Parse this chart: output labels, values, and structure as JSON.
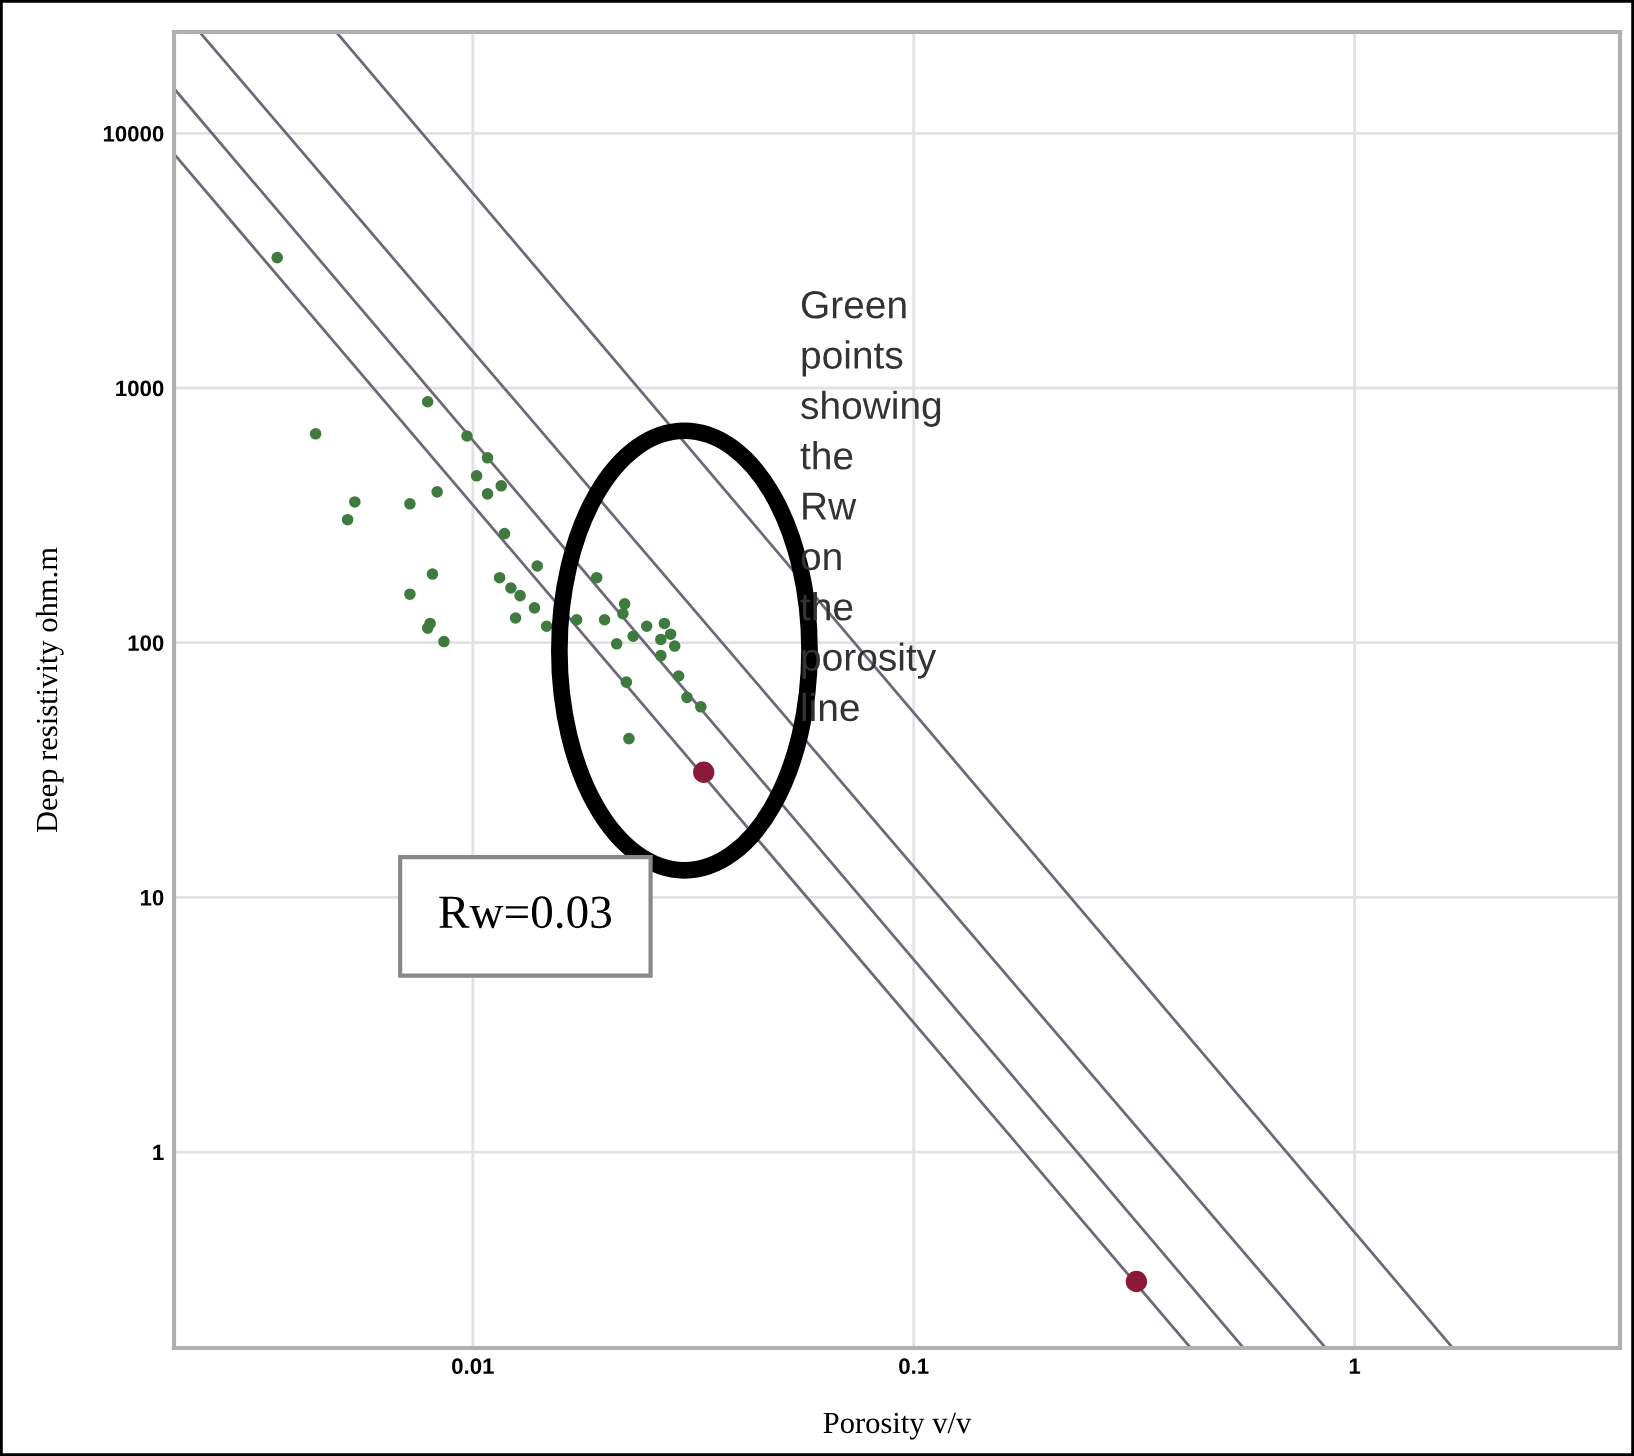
{
  "chart_data": {
    "type": "scatter",
    "xlabel": "Porosity v/v",
    "ylabel": "Deep resistivity ohm.m",
    "log": "xy",
    "xlim": [
      0.0021,
      4.0
    ],
    "ylim": [
      0.17,
      25000
    ],
    "xticks": [
      0.01,
      0.1,
      1
    ],
    "yticks": [
      1,
      10,
      100,
      1000,
      10000
    ],
    "grid": true,
    "legend": false,
    "marker": "circle",
    "annotations": [
      "Green points showing the Rw on the porosity line",
      "Rw=0.03"
    ],
    "series": [
      {
        "type": "line",
        "marker": "none",
        "color": "#6e6878",
        "x": [
          0.0021,
          0.425
        ],
        "values": [
          8300,
          0.17
        ]
      },
      {
        "type": "line",
        "marker": "none",
        "color": "#6e6878",
        "x": [
          0.0021,
          0.56
        ],
        "values": [
          15000,
          0.17
        ]
      },
      {
        "type": "line",
        "marker": "none",
        "color": "#6e6878",
        "x": [
          0.0024,
          0.86
        ],
        "values": [
          25000,
          0.17
        ]
      },
      {
        "type": "line",
        "marker": "none",
        "color": "#6e6878",
        "x": [
          0.0049,
          1.67
        ],
        "values": [
          25000,
          0.17
        ]
      },
      {
        "color": "#3f7a3f",
        "x": [
          0.0036,
          0.0044,
          0.0054,
          0.0052,
          0.0079,
          0.0097,
          0.0108,
          0.0102,
          0.0116,
          0.0108,
          0.0083,
          0.0072,
          0.0118,
          0.0081,
          0.0072,
          0.0115,
          0.0122,
          0.0128,
          0.014,
          0.0138,
          0.0125,
          0.008,
          0.0079,
          0.0086,
          0.0147,
          0.0172,
          0.0191,
          0.0199,
          0.0221,
          0.0219,
          0.0231,
          0.0212,
          0.0248,
          0.0272,
          0.0281,
          0.0267,
          0.0287,
          0.0267,
          0.0293,
          0.0223,
          0.0306,
          0.0329,
          0.0226
        ],
        "values": [
          3250,
          661,
          357,
          304,
          883,
          648,
          532,
          452,
          413,
          384,
          391,
          351,
          268,
          186,
          155,
          180,
          164,
          153,
          200,
          137,
          125,
          119,
          114,
          101,
          116,
          123,
          180,
          123,
          142,
          130,
          106,
          99,
          116,
          119,
          108,
          103,
          97,
          89,
          74,
          70,
          61,
          56,
          42
        ]
      },
      {
        "color": "#8b1a3a",
        "x": [
          0.0334,
          0.32
        ],
        "values": [
          31,
          0.31
        ]
      }
    ]
  }
}
